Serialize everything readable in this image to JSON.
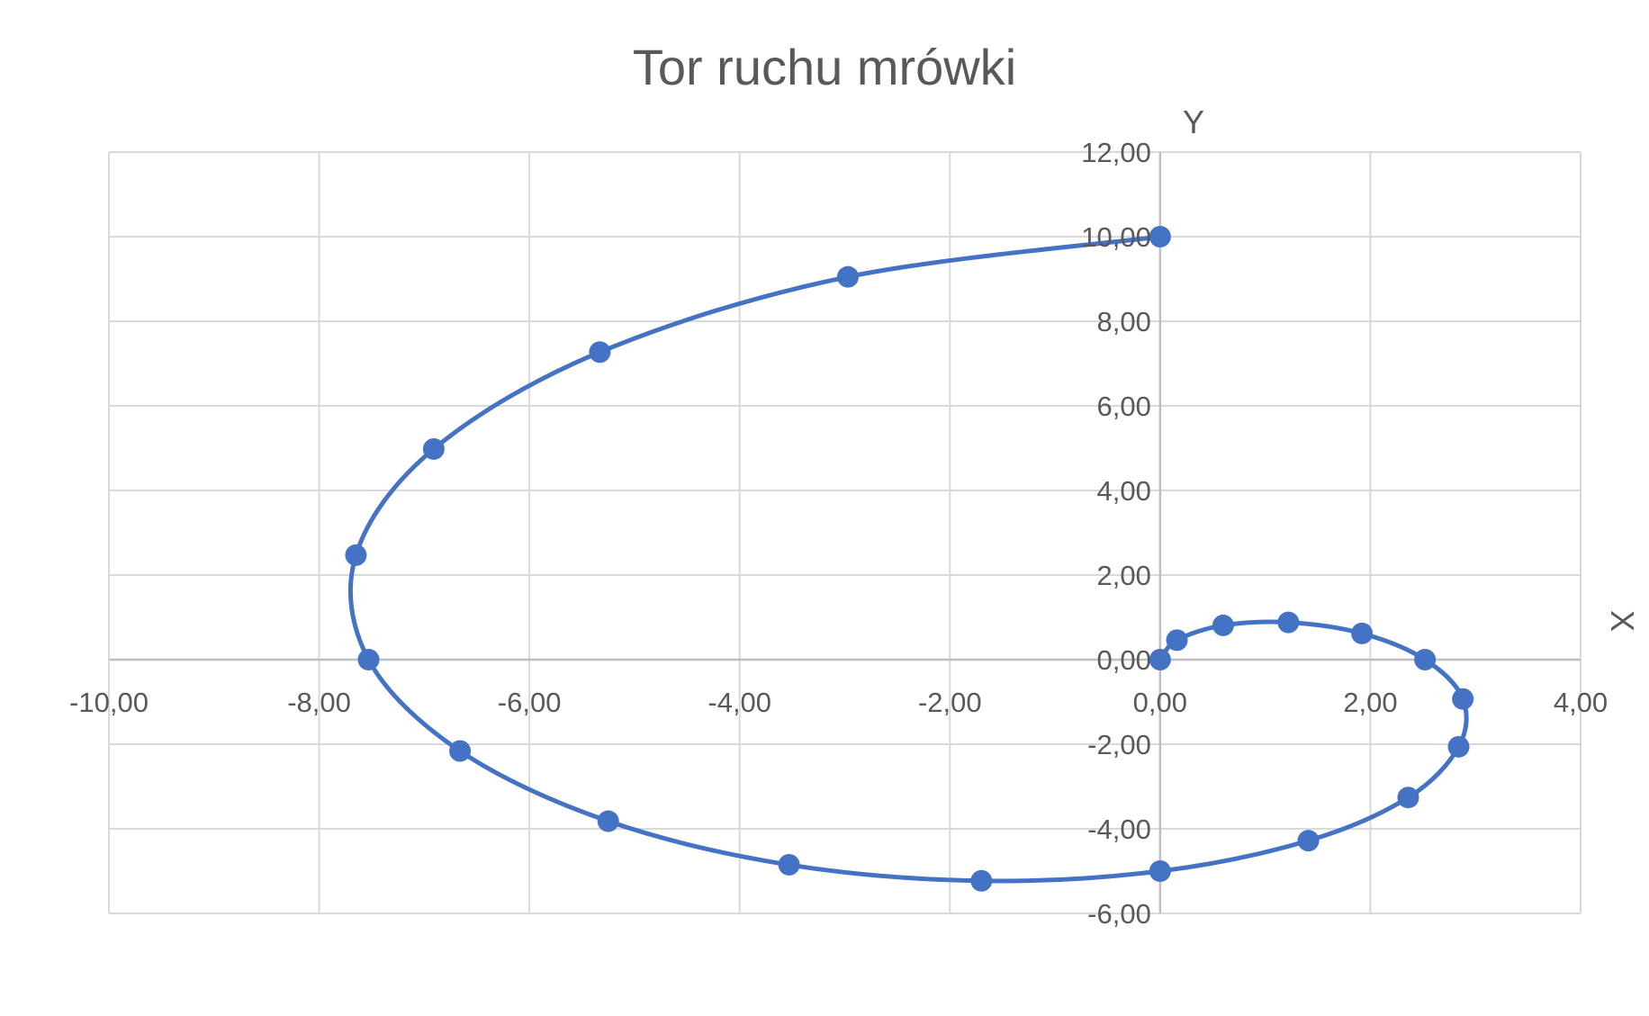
{
  "chart_data": {
    "type": "scatter",
    "title": "Tor ruchu mrówki",
    "xlabel": "X",
    "ylabel": "Y",
    "xlim": [
      -10,
      4
    ],
    "ylim": [
      -6,
      12
    ],
    "x_major_unit": 2,
    "y_major_unit": 2,
    "x_tick_labels": [
      "-10,00",
      "-8,00",
      "-6,00",
      "-4,00",
      "-2,00",
      "0,00",
      "2,00",
      "4,00"
    ],
    "y_tick_labels": [
      "-6,00",
      "-4,00",
      "-2,00",
      "0,00",
      "2,00",
      "4,00",
      "6,00",
      "8,00",
      "10,00",
      "12,00"
    ],
    "grid": true,
    "legend": "none",
    "line_style": "smooth",
    "series": [
      {
        "color": "#4472C4",
        "points": [
          [
            0.0,
            0.0
          ],
          [
            0.16,
            0.46
          ],
          [
            0.6,
            0.81
          ],
          [
            1.22,
            0.88
          ],
          [
            1.92,
            0.62
          ],
          [
            2.52,
            0.0
          ],
          [
            2.88,
            -0.93
          ],
          [
            2.84,
            -2.06
          ],
          [
            2.36,
            -3.26
          ],
          [
            1.41,
            -4.28
          ],
          [
            0.0,
            -5.0
          ],
          [
            -1.7,
            -5.23
          ],
          [
            -3.53,
            -4.85
          ],
          [
            -5.25,
            -3.82
          ],
          [
            -6.66,
            -2.16
          ],
          [
            -7.53,
            0.0
          ],
          [
            -7.65,
            2.47
          ],
          [
            -6.91,
            4.98
          ],
          [
            -5.33,
            7.27
          ],
          [
            -2.97,
            9.05
          ],
          [
            0.0,
            10.0
          ]
        ]
      }
    ]
  }
}
